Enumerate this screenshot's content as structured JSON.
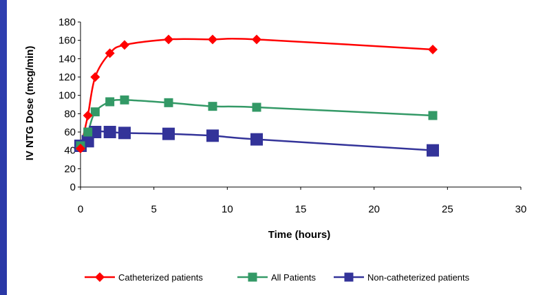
{
  "chart_data": {
    "type": "line",
    "title": "",
    "xlabel": "Time (hours)",
    "ylabel": "IV NTG Dose (mcg/min)",
    "xlim": [
      0,
      30
    ],
    "ylim": [
      0,
      180
    ],
    "xticks": [
      0,
      5,
      10,
      15,
      20,
      25,
      30
    ],
    "yticks": [
      0,
      20,
      40,
      60,
      80,
      100,
      120,
      140,
      160,
      180
    ],
    "grid": false,
    "legend_position": "bottom",
    "series": [
      {
        "name": "Catheterized patients",
        "color": "#ff0000",
        "marker": "diamond",
        "x": [
          0,
          0.5,
          1,
          2,
          3,
          6,
          9,
          12,
          24
        ],
        "y": [
          42,
          78,
          120,
          146,
          155,
          161,
          161,
          161,
          150
        ]
      },
      {
        "name": "All Patients",
        "color": "#339966",
        "marker": "square",
        "x": [
          0,
          0.5,
          1,
          2,
          3,
          6,
          9,
          12,
          24
        ],
        "y": [
          45,
          60,
          82,
          93,
          95,
          92,
          88,
          87,
          78
        ]
      },
      {
        "name": "Non-catheterized patients",
        "color": "#333399",
        "marker": "square-large",
        "x": [
          0,
          0.5,
          1,
          2,
          3,
          6,
          9,
          12,
          24
        ],
        "y": [
          45,
          50,
          60,
          60,
          59,
          58,
          56,
          52,
          40
        ]
      }
    ]
  }
}
